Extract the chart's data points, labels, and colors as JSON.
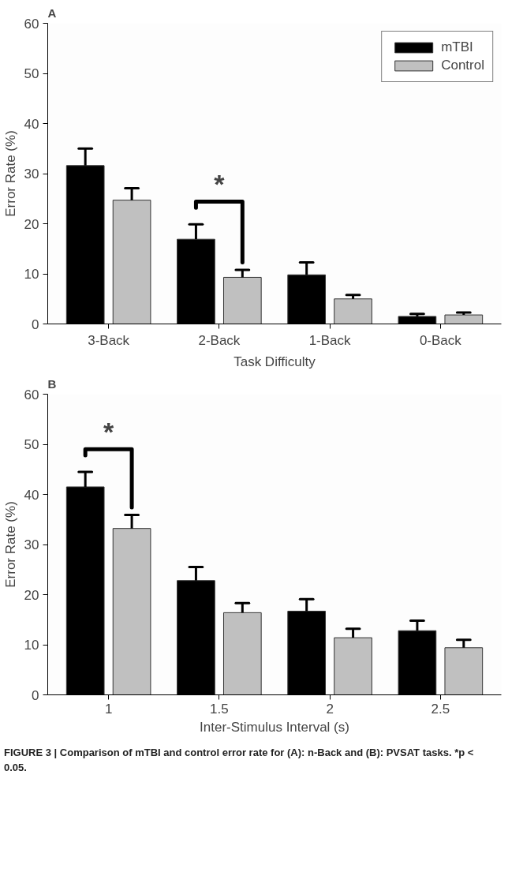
{
  "chart_data": [
    {
      "type": "bar",
      "title": "A",
      "xlabel": "Task Difficulty",
      "ylabel": "Error Rate (%)",
      "categories": [
        "3-Back",
        "2-Back",
        "1-Back",
        "0-Back"
      ],
      "series": [
        {
          "name": "mTBI",
          "color": "#000000",
          "values": [
            31.6,
            16.9,
            9.8,
            1.5
          ],
          "errors": [
            [
              31.6,
              35.0
            ],
            [
              16.9,
              19.9
            ],
            [
              9.8,
              12.3
            ],
            [
              1.5,
              2.0
            ]
          ]
        },
        {
          "name": "Control",
          "color": "#c0c0c0",
          "values": [
            24.7,
            9.3,
            5.0,
            1.8
          ],
          "errors": [
            [
              24.7,
              27.1
            ],
            [
              9.3,
              10.8
            ],
            [
              5.0,
              5.8
            ],
            [
              1.8,
              2.3
            ]
          ]
        }
      ],
      "ylim": [
        0,
        60
      ],
      "yticks": [
        0,
        10,
        20,
        30,
        40,
        50,
        60
      ],
      "grid": false,
      "legend": "top right",
      "annotations": [
        "*"
      ]
    },
    {
      "type": "bar",
      "title": "B",
      "xlabel": "Inter-Stimulus Interval (s)",
      "ylabel": "Error Rate (%)",
      "categories": [
        "1",
        "1.5",
        "2",
        "2.5"
      ],
      "series": [
        {
          "color": "#000000",
          "values": [
            41.5,
            22.8,
            16.7,
            12.8
          ],
          "errors": [
            [
              41.5,
              44.5
            ],
            [
              22.8,
              25.5
            ],
            [
              16.7,
              19.1
            ],
            [
              12.8,
              14.8
            ]
          ]
        },
        {
          "color": "#c0c0c0",
          "values": [
            33.2,
            16.4,
            11.4,
            9.4
          ],
          "errors": [
            [
              33.2,
              35.9
            ],
            [
              16.4,
              18.3
            ],
            [
              11.4,
              13.2
            ],
            [
              9.4,
              11.0
            ]
          ]
        }
      ],
      "ylim": [
        0,
        60
      ],
      "yticks": [
        0,
        10,
        20,
        30,
        40,
        50,
        60
      ],
      "grid": false,
      "legend": false,
      "annotations": [
        "*",
        "FIGURE 3 | Comparison of mTBI and control error rate for (A): n-Back and (B): PVSAT tasks. *p < 0.05."
      ]
    }
  ]
}
